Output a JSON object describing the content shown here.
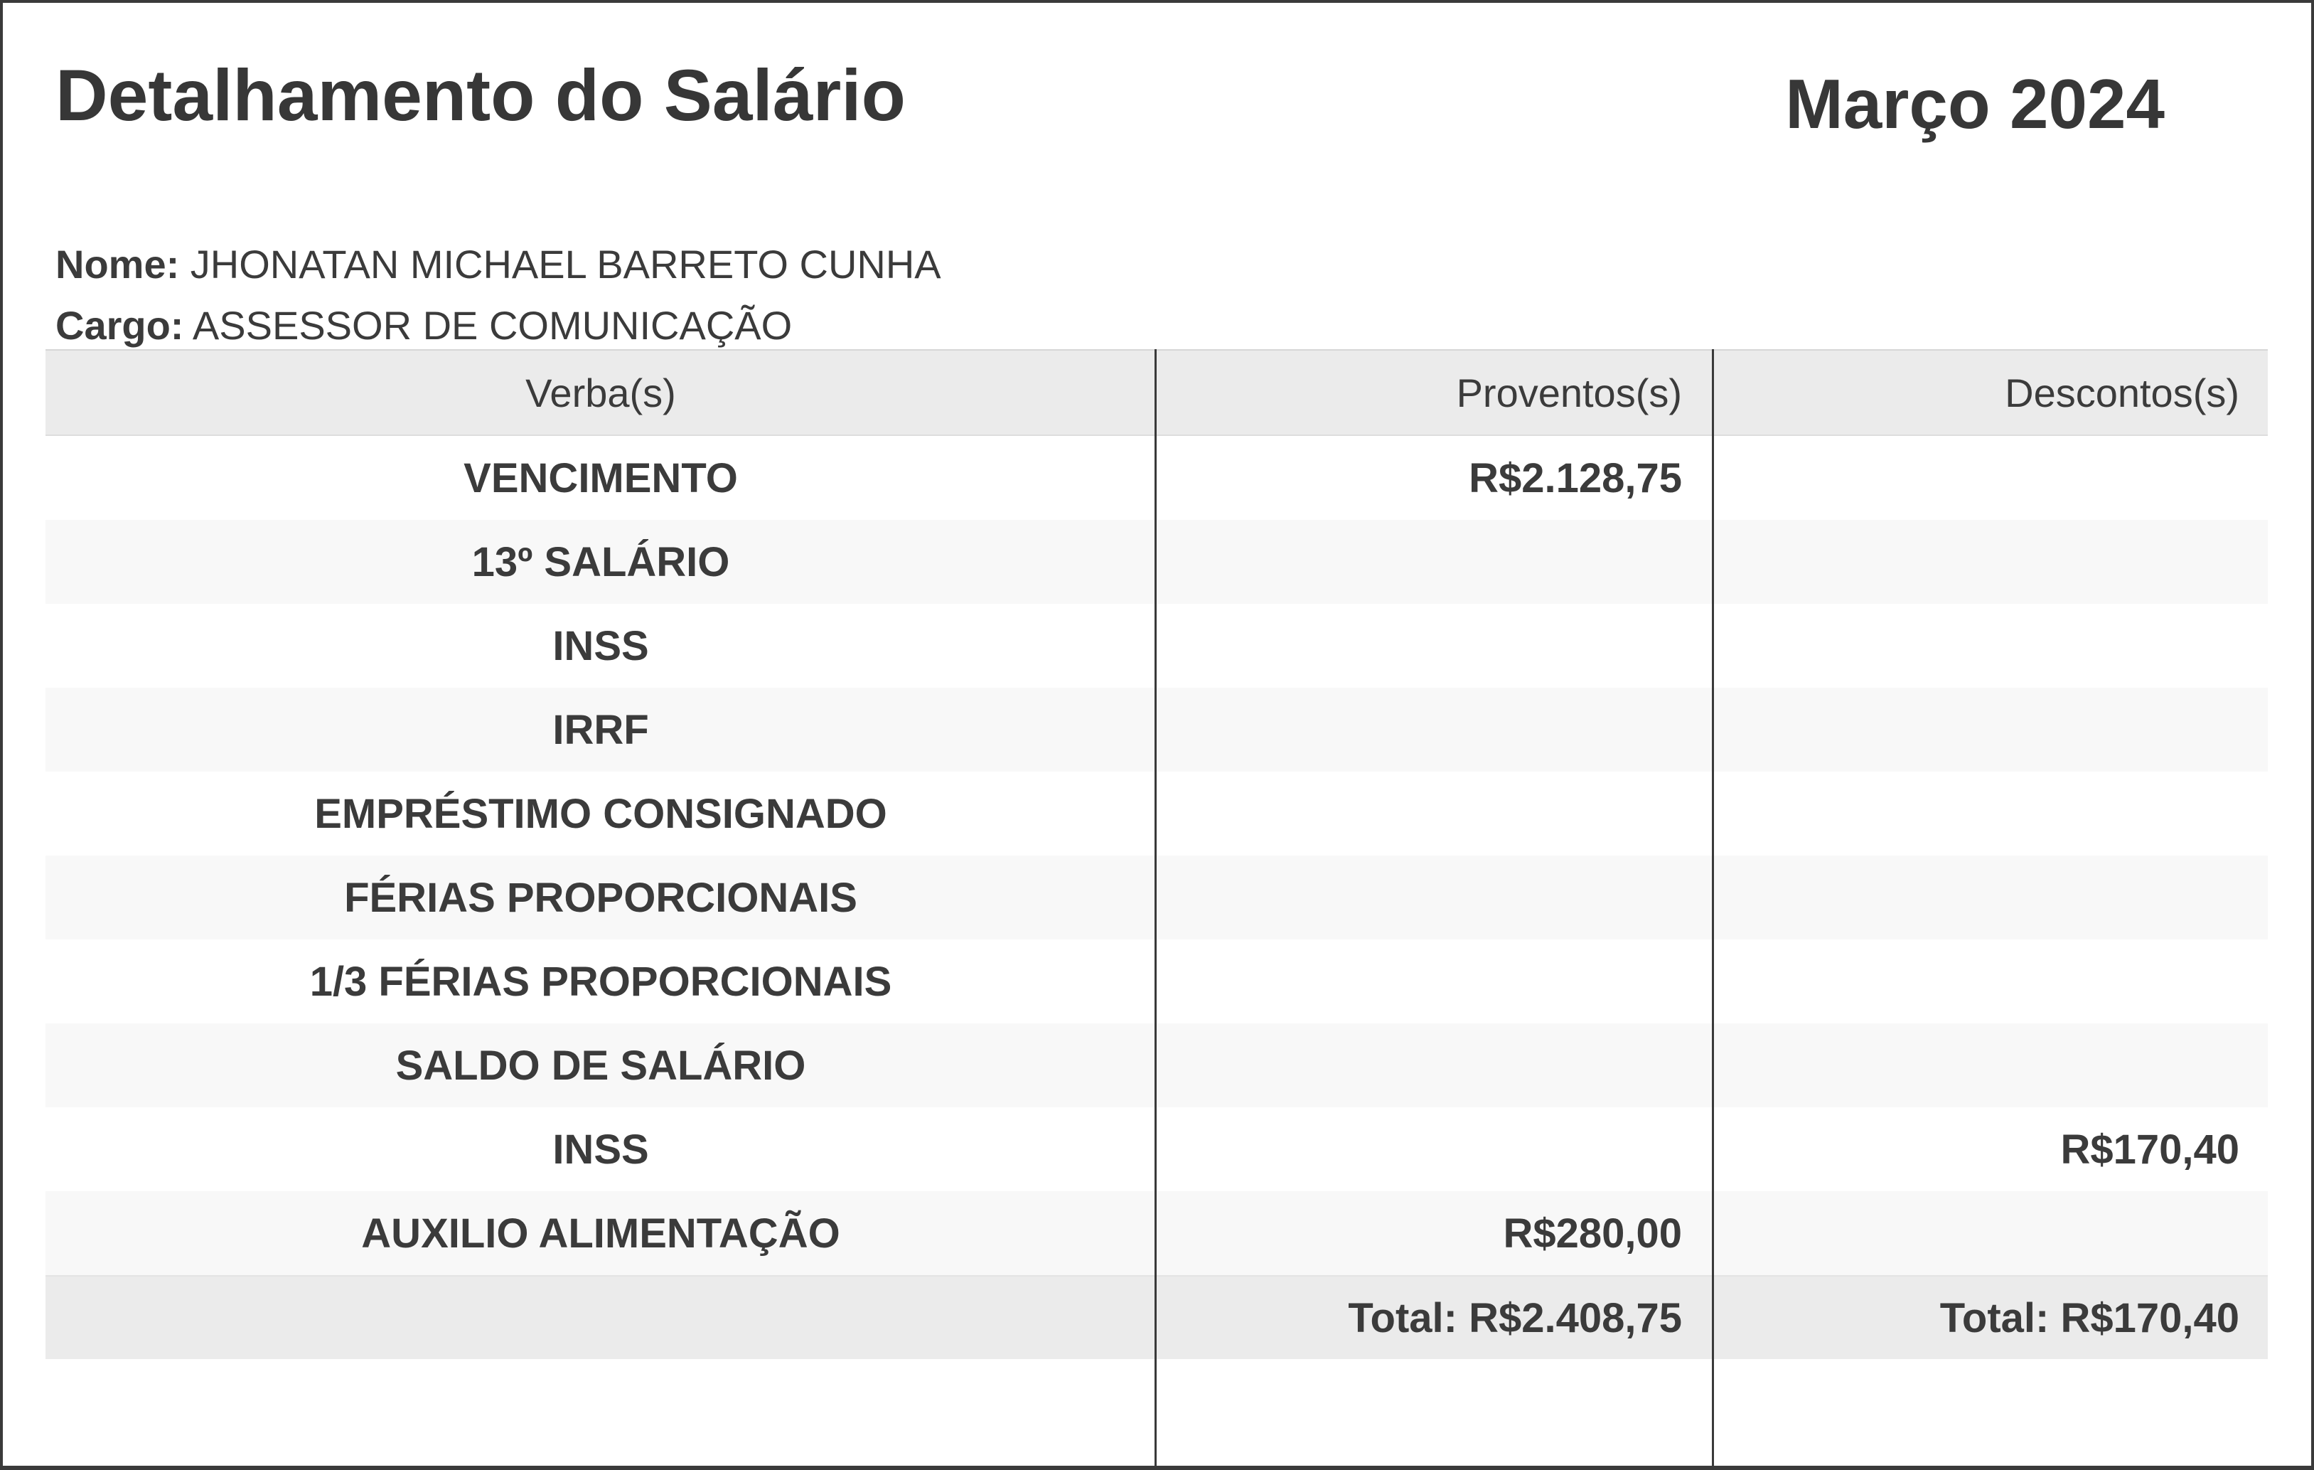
{
  "header": {
    "title": "Detalhamento do Salário",
    "period": "Março 2024"
  },
  "employee": {
    "name_label": "Nome:",
    "name": "JHONATAN MICHAEL BARRETO CUNHA",
    "role_label": "Cargo:",
    "role": "ASSESSOR DE COMUNICAÇÃO"
  },
  "table": {
    "headers": [
      "Verba(s)",
      "Proventos(s)",
      "Descontos(s)"
    ],
    "rows": [
      {
        "verba": "VENCIMENTO",
        "proventos": "R$2.128,75",
        "descontos": ""
      },
      {
        "verba": "13º SALÁRIO",
        "proventos": "",
        "descontos": ""
      },
      {
        "verba": "INSS",
        "proventos": "",
        "descontos": ""
      },
      {
        "verba": "IRRF",
        "proventos": "",
        "descontos": ""
      },
      {
        "verba": "EMPRÉSTIMO CONSIGNADO",
        "proventos": "",
        "descontos": ""
      },
      {
        "verba": "FÉRIAS PROPORCIONAIS",
        "proventos": "",
        "descontos": ""
      },
      {
        "verba": "1/3 FÉRIAS PROPORCIONAIS",
        "proventos": "",
        "descontos": ""
      },
      {
        "verba": "SALDO DE SALÁRIO",
        "proventos": "",
        "descontos": ""
      },
      {
        "verba": "INSS",
        "proventos": "",
        "descontos": "R$170,40"
      },
      {
        "verba": "AUXILIO ALIMENTAÇÃO",
        "proventos": "R$280,00",
        "descontos": ""
      }
    ],
    "totals": {
      "proventos": "Total: R$2.408,75",
      "descontos": "Total: R$170,40"
    }
  },
  "colors": {
    "text": "#3b3b3b",
    "title_text": "#373737",
    "header_row_bg": "#ebebeb",
    "alt_row_bg": "#f8f8f8",
    "total_row_bg": "#ebebeb",
    "column_divider": "#3a3a3a",
    "page_border": "#3a3a3a"
  }
}
